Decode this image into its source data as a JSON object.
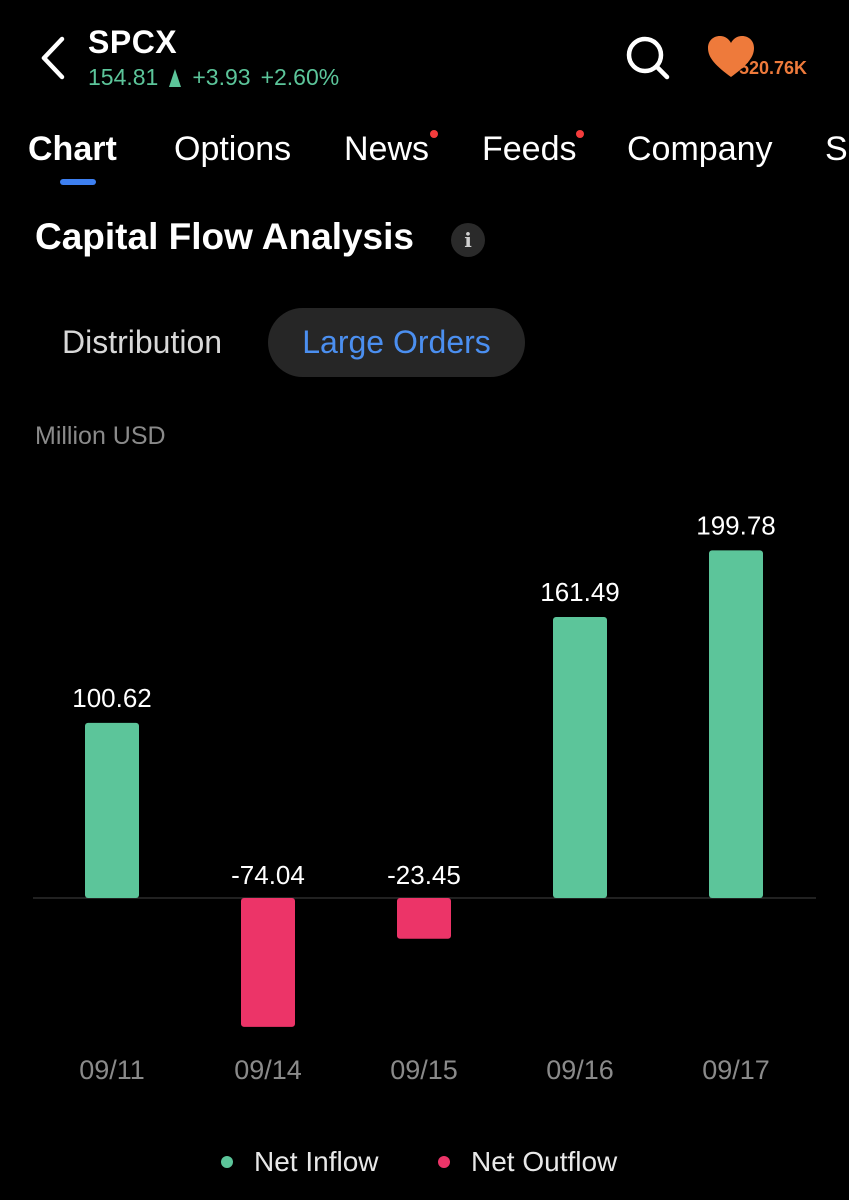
{
  "header": {
    "ticker": "SPCX",
    "price": "154.81",
    "change": "+3.93",
    "change_pct": "+2.60%",
    "favorites_count": "520.76K",
    "up_color": "#5cc59a",
    "fav_color": "#ee7a3b"
  },
  "tabs": [
    {
      "label": "Chart",
      "active": true,
      "dot": false
    },
    {
      "label": "Options",
      "active": false,
      "dot": false
    },
    {
      "label": "News",
      "active": false,
      "dot": true
    },
    {
      "label": "Feeds",
      "active": false,
      "dot": true
    },
    {
      "label": "Company",
      "active": false,
      "dot": false
    },
    {
      "label": "Sa",
      "active": false,
      "dot": false
    }
  ],
  "section": {
    "title": "Capital Flow Analysis",
    "info_icon": "info-icon",
    "segments": {
      "distribution": "Distribution",
      "large_orders": "Large Orders",
      "selected": "Large Orders"
    },
    "unit": "Million USD"
  },
  "chart_data": {
    "type": "bar",
    "categories": [
      "09/11",
      "09/14",
      "09/15",
      "09/16",
      "09/17"
    ],
    "values": [
      100.62,
      -74.04,
      -23.45,
      161.49,
      199.78
    ],
    "value_labels": [
      "100.62",
      "-74.04",
      "-23.45",
      "161.49",
      "199.78"
    ],
    "ylabel": "Million USD",
    "colors": {
      "inflow": "#5cc59a",
      "outflow": "#ec3468"
    },
    "legend": [
      "Net Inflow",
      "Net Outflow"
    ],
    "legend_position": "bottom",
    "grid": false
  }
}
